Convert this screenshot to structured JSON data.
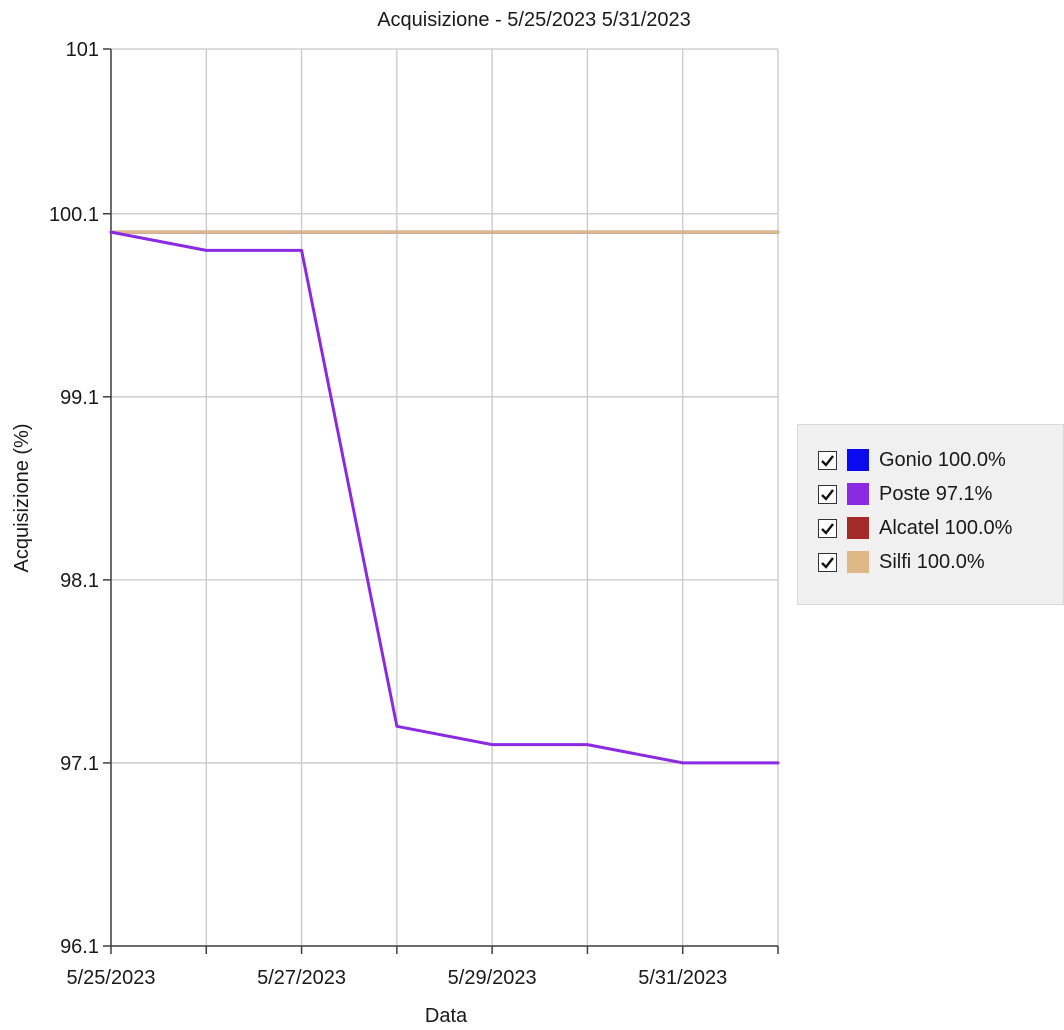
{
  "chart_data": {
    "type": "line",
    "title": "Acquisizione - 5/25/2023 5/31/2023",
    "xlabel": "Data",
    "ylabel": "Acquisizione (%)",
    "x": [
      "5/25/2023",
      "5/26/2023",
      "5/27/2023",
      "5/28/2023",
      "5/29/2023",
      "5/30/2023",
      "5/31/2023",
      "6/1/2023"
    ],
    "x_range": [
      "5/25/2023",
      "6/1/2023"
    ],
    "x_tick_labels": [
      "5/25/2023",
      "5/27/2023",
      "5/29/2023",
      "5/31/2023"
    ],
    "ylim": [
      96.1,
      101
    ],
    "y_ticks": [
      96.1,
      97.1,
      98.1,
      99.1,
      100.1,
      101
    ],
    "y_tick_labels": [
      "96.1",
      "97.1",
      "98.1",
      "99.1",
      "100.1",
      "101"
    ],
    "grid": true,
    "legend_position": "right",
    "series": [
      {
        "name": "Gonio",
        "legend_label": "Gonio 100.0%",
        "color": "#0a0af0",
        "checked": true,
        "values": [
          100,
          100,
          100,
          100,
          100,
          100,
          100,
          100
        ]
      },
      {
        "name": "Poste",
        "legend_label": "Poste 97.1%",
        "color": "#8a2be2",
        "checked": true,
        "values": [
          100,
          99.9,
          99.9,
          97.3,
          97.2,
          97.2,
          97.1,
          97.1
        ]
      },
      {
        "name": "Alcatel",
        "legend_label": "Alcatel 100.0%",
        "color": "#a52a2a",
        "checked": true,
        "values": [
          100,
          100,
          100,
          100,
          100,
          100,
          100,
          100
        ]
      },
      {
        "name": "Silfi",
        "legend_label": "Silfi 100.0%",
        "color": "#deb887",
        "checked": true,
        "values": [
          100,
          100,
          100,
          100,
          100,
          100,
          100,
          100
        ]
      }
    ]
  }
}
